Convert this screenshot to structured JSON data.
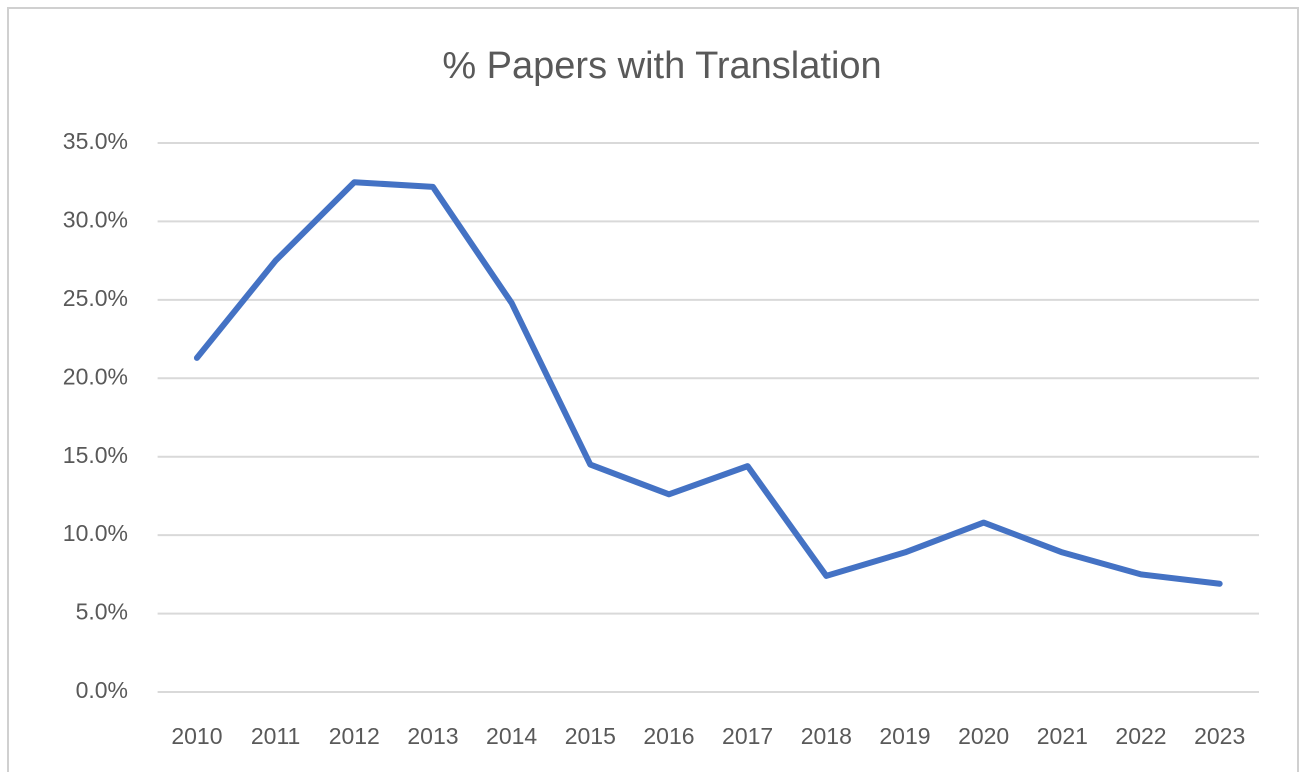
{
  "chart_data": {
    "type": "line",
    "title": "% Papers with Translation",
    "categories": [
      "2010",
      "2011",
      "2012",
      "2013",
      "2014",
      "2015",
      "2016",
      "2017",
      "2018",
      "2019",
      "2020",
      "2021",
      "2022",
      "2023"
    ],
    "values": [
      21.3,
      27.5,
      32.5,
      32.2,
      24.8,
      14.5,
      12.6,
      14.4,
      7.4,
      8.9,
      10.8,
      8.9,
      7.5,
      6.9
    ],
    "color": "#4472c4",
    "ylim": [
      0,
      35
    ],
    "yticks": [
      {
        "value": 0,
        "label": "0.0%"
      },
      {
        "value": 5,
        "label": "5.0%"
      },
      {
        "value": 10,
        "label": "10.0%"
      },
      {
        "value": 15,
        "label": "15.0%"
      },
      {
        "value": 20,
        "label": "20.0%"
      },
      {
        "value": 25,
        "label": "25.0%"
      },
      {
        "value": 30,
        "label": "30.0%"
      },
      {
        "value": 35,
        "label": "35.0%"
      }
    ],
    "grid": true
  }
}
